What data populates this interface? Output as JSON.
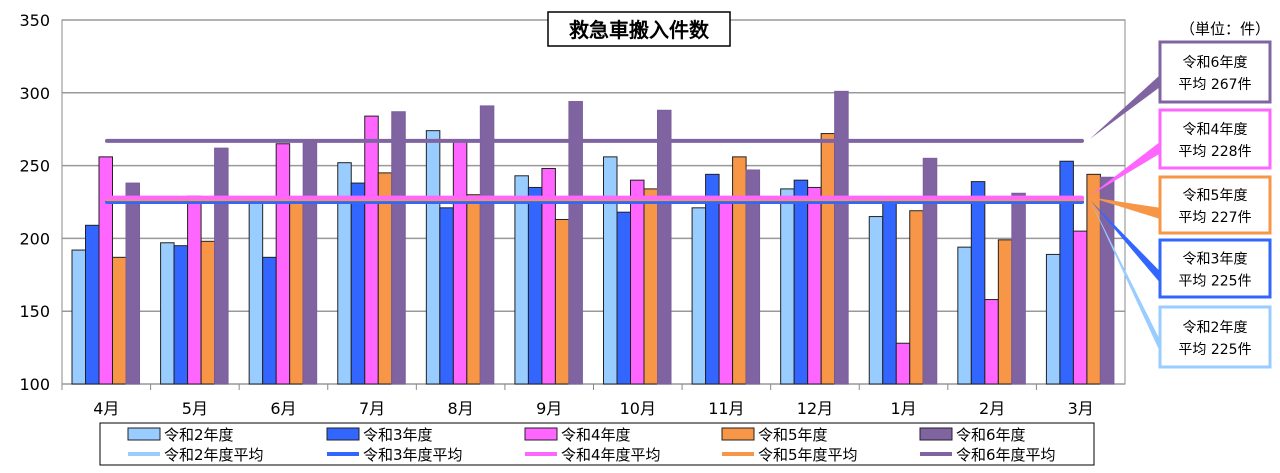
{
  "chart_data": {
    "type": "bar",
    "title": "救急車搬入件数",
    "unit_note": "（単位：件）",
    "categories": [
      "4月",
      "5月",
      "6月",
      "7月",
      "8月",
      "9月",
      "10月",
      "11月",
      "12月",
      "1月",
      "2月",
      "3月"
    ],
    "ylim": [
      100,
      350
    ],
    "yticks": [
      100,
      150,
      200,
      250,
      300,
      350
    ],
    "grid": true,
    "legend_placement": "bottom",
    "series": [
      {
        "name": "令和2年度",
        "color": "#99ccff",
        "values": [
          192,
          197,
          227,
          252,
          274,
          243,
          256,
          221,
          234,
          215,
          194,
          189
        ]
      },
      {
        "name": "令和3年度",
        "color": "#3366ff",
        "values": [
          209,
          195,
          187,
          238,
          221,
          235,
          218,
          244,
          240,
          226,
          239,
          253
        ]
      },
      {
        "name": "令和4年度",
        "color": "#ff66ff",
        "values": [
          256,
          229,
          265,
          284,
          267,
          248,
          240,
          226,
          235,
          128,
          158,
          205
        ]
      },
      {
        "name": "令和5年度",
        "color": "#f79646",
        "values": [
          187,
          198,
          228,
          245,
          230,
          213,
          234,
          256,
          272,
          219,
          199,
          244
        ]
      },
      {
        "name": "令和6年度",
        "color": "#8064a2",
        "values": [
          238,
          262,
          267,
          287,
          291,
          294,
          288,
          247,
          301,
          255,
          231,
          242
        ]
      }
    ],
    "averages": [
      {
        "name": "令和2年度平均",
        "color": "#99ccff",
        "value": 225,
        "label1": "令和2年度",
        "label2": "平均 225件"
      },
      {
        "name": "令和3年度平均",
        "color": "#3366ff",
        "value": 225,
        "label1": "令和3年度",
        "label2": "平均 225件"
      },
      {
        "name": "令和4年度平均",
        "color": "#ff66ff",
        "value": 228,
        "label1": "令和4年度",
        "label2": "平均 228件"
      },
      {
        "name": "令和5年度平均",
        "color": "#f79646",
        "value": 227,
        "label1": "令和5年度",
        "label2": "平均 227件"
      },
      {
        "name": "令和6年度平均",
        "color": "#8064a2",
        "value": 267,
        "label1": "令和6年度",
        "label2": "平均 267件"
      }
    ]
  }
}
